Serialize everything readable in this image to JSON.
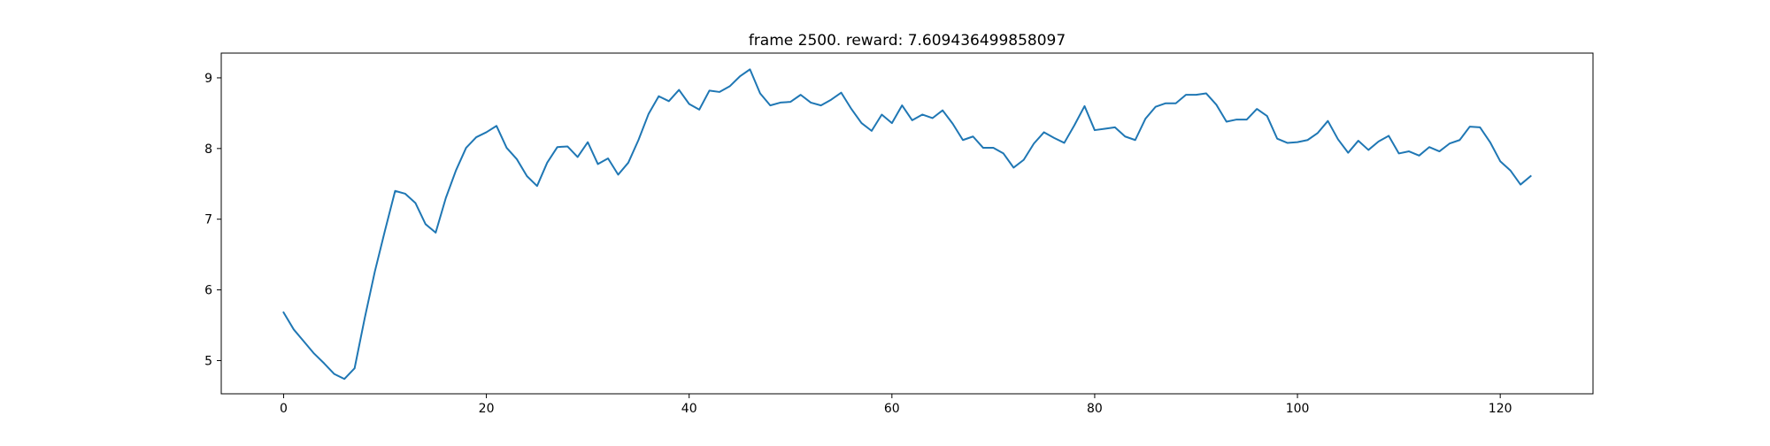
{
  "chart_data": {
    "type": "line",
    "title": "frame 2500. reward: 7.609436499858097",
    "xlabel": "",
    "ylabel": "",
    "xlim": [
      -6.15,
      129.15
    ],
    "ylim": [
      4.53,
      9.35
    ],
    "xticks": [
      0,
      20,
      40,
      60,
      80,
      100,
      120
    ],
    "yticks": [
      5,
      6,
      7,
      8,
      9
    ],
    "xtick_labels": [
      "0",
      "20",
      "40",
      "60",
      "80",
      "100",
      "120"
    ],
    "ytick_labels": [
      "5",
      "6",
      "7",
      "8",
      "9"
    ],
    "grid": false,
    "legend": "none",
    "line_color": "#1f77b4",
    "series": [
      {
        "x": [
          0,
          1,
          2,
          3,
          4,
          5,
          6,
          7,
          8,
          9,
          10,
          11,
          12,
          13,
          14,
          15,
          16,
          17,
          18,
          19,
          20,
          21,
          22,
          23,
          24,
          25,
          26,
          27,
          28,
          29,
          30,
          31,
          32,
          33,
          34,
          35,
          36,
          37,
          38,
          39,
          40,
          41,
          42,
          43,
          44,
          45,
          46,
          47,
          48,
          49,
          50,
          51,
          52,
          53,
          54,
          55,
          56,
          57,
          58,
          59,
          60,
          61,
          62,
          63,
          64,
          65,
          66,
          67,
          68,
          69,
          70,
          71,
          72,
          73,
          74,
          75,
          76,
          77,
          78,
          79,
          80,
          81,
          82,
          83,
          84,
          85,
          86,
          87,
          88,
          89,
          90,
          91,
          92,
          93,
          94,
          95,
          96,
          97,
          98,
          99,
          100,
          101,
          102,
          103,
          104,
          105,
          106,
          107,
          108,
          109,
          110,
          111,
          112,
          113,
          114,
          115,
          116,
          117,
          118,
          119,
          120,
          121,
          122,
          123
        ],
        "values": [
          5.68,
          5.44,
          5.27,
          5.1,
          4.96,
          4.81,
          4.74,
          4.89,
          5.6,
          6.26,
          6.84,
          7.4,
          7.36,
          7.23,
          6.93,
          6.81,
          7.3,
          7.69,
          8.01,
          8.16,
          8.23,
          8.32,
          8.01,
          7.85,
          7.61,
          7.47,
          7.8,
          8.02,
          8.03,
          7.88,
          8.09,
          7.78,
          7.86,
          7.63,
          7.8,
          8.12,
          8.49,
          8.74,
          8.67,
          8.83,
          8.63,
          8.55,
          8.82,
          8.8,
          8.88,
          9.02,
          9.12,
          8.78,
          8.61,
          8.65,
          8.66,
          8.76,
          8.65,
          8.61,
          8.69,
          8.79,
          8.56,
          8.36,
          8.25,
          8.48,
          8.36,
          8.61,
          8.4,
          8.48,
          8.43,
          8.54,
          8.35,
          8.12,
          8.17,
          8.01,
          8.01,
          7.93,
          7.73,
          7.84,
          8.07,
          8.23,
          8.15,
          8.08,
          8.33,
          8.6,
          8.26,
          8.28,
          8.3,
          8.17,
          8.12,
          8.42,
          8.59,
          8.64,
          8.64,
          8.76,
          8.76,
          8.78,
          8.62,
          8.38,
          8.41,
          8.41,
          8.56,
          8.46,
          8.14,
          8.08,
          8.09,
          8.12,
          8.22,
          8.39,
          8.13,
          7.94,
          8.11,
          7.98,
          8.1,
          8.18,
          7.93,
          7.96,
          7.9,
          8.02,
          7.96,
          8.07,
          8.12,
          8.31,
          8.3,
          8.09,
          7.82,
          7.69,
          7.49,
          7.61
        ]
      }
    ]
  }
}
